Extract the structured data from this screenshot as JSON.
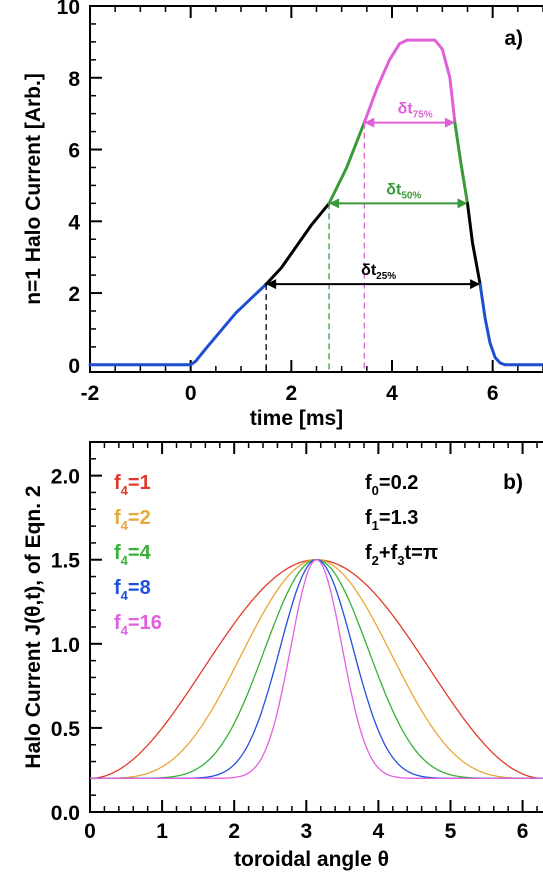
{
  "chart_data": [
    {
      "type": "line",
      "panel_label": "a)",
      "xlabel": "time [ms]",
      "ylabel": "n=1 Halo Current [Arb.]",
      "xlim": [
        -2,
        7
      ],
      "ylim": [
        -0.2,
        10
      ],
      "xticks": [
        "-2",
        "0",
        "2",
        "4",
        "6"
      ],
      "yticks": [
        "0",
        "2",
        "4",
        "6",
        "8",
        "10"
      ],
      "series": [
        {
          "color": "#1f4fd1",
          "x": [
            -2,
            0,
            0.1,
            0.3,
            0.6,
            0.9,
            1.2,
            1.5
          ],
          "y": [
            0,
            0,
            0.1,
            0.45,
            0.95,
            1.45,
            1.85,
            2.25
          ]
        },
        {
          "color": "#000000",
          "x": [
            1.5,
            1.8,
            2.1,
            2.4,
            2.75
          ],
          "y": [
            2.25,
            2.7,
            3.3,
            3.9,
            4.5
          ]
        },
        {
          "color": "#3a9a3a",
          "x": [
            2.75,
            3.1,
            3.45
          ],
          "y": [
            4.5,
            5.5,
            6.75
          ]
        },
        {
          "color": "#e060d8",
          "x": [
            3.45,
            3.7,
            3.95,
            4.15,
            4.3,
            4.85,
            5.0,
            5.15,
            5.25
          ],
          "y": [
            6.75,
            7.7,
            8.5,
            8.95,
            9.05,
            9.05,
            8.8,
            8.0,
            6.75
          ]
        },
        {
          "color": "#3a9a3a",
          "x": [
            5.25,
            5.37,
            5.5
          ],
          "y": [
            6.75,
            5.6,
            4.5
          ]
        },
        {
          "color": "#000000",
          "x": [
            5.5,
            5.6,
            5.75
          ],
          "y": [
            4.5,
            3.4,
            2.25
          ]
        },
        {
          "color": "#1f4fd1",
          "x": [
            5.75,
            5.85,
            5.95,
            6.05,
            6.15,
            6.25,
            7
          ],
          "y": [
            2.25,
            1.3,
            0.6,
            0.2,
            0.05,
            0,
            0
          ]
        }
      ],
      "annotations": [
        {
          "main": "δt",
          "sub": "75%",
          "color": "#e060d8",
          "x0": 3.45,
          "x1": 5.25,
          "y": 6.75
        },
        {
          "main": "δt",
          "sub": "50%",
          "color": "#3a9a3a",
          "x0": 2.75,
          "x1": 5.5,
          "y": 4.5
        },
        {
          "main": "δt",
          "sub": "25%",
          "color": "#000000",
          "x0": 1.5,
          "x1": 5.75,
          "y": 2.25
        }
      ]
    },
    {
      "type": "line",
      "panel_label": "b)",
      "xlabel": "toroidal angle θ",
      "ylabel": "Halo Current J(θ,t), of Eqn. 2",
      "xlim": [
        0,
        6.2832
      ],
      "ylim": [
        0,
        2.2
      ],
      "xticks": [
        "0",
        "1",
        "2",
        "3",
        "4",
        "5",
        "6"
      ],
      "yticks": [
        "0.0",
        "0.5",
        "1.0",
        "1.5",
        "2.0"
      ],
      "model": {
        "f0": 0.2,
        "f1": 1.3,
        "center": 3.14159
      },
      "series": [
        {
          "label_main": "f",
          "label_sub": "4",
          "label_val": "=1",
          "f4": 1,
          "color": "#e23a2a"
        },
        {
          "label_main": "f",
          "label_sub": "4",
          "label_val": "=2",
          "f4": 2,
          "color": "#e8a838"
        },
        {
          "label_main": "f",
          "label_sub": "4",
          "label_val": "=4",
          "f4": 4,
          "color": "#36b036"
        },
        {
          "label_main": "f",
          "label_sub": "4",
          "label_val": "=8",
          "f4": 8,
          "color": "#2050e0"
        },
        {
          "label_main": "f",
          "label_sub": "4",
          "label_val": "=16",
          "f4": 16,
          "color": "#e060e0"
        }
      ],
      "parameter_text": [
        {
          "main": "f",
          "sub": "0",
          "rest": "=0.2"
        },
        {
          "main": "f",
          "sub": "1",
          "rest": "=1.3"
        },
        {
          "main": "f",
          "sub": "2",
          "rest": "+f",
          "sub2": "3",
          "rest2": "t=π"
        }
      ]
    }
  ]
}
